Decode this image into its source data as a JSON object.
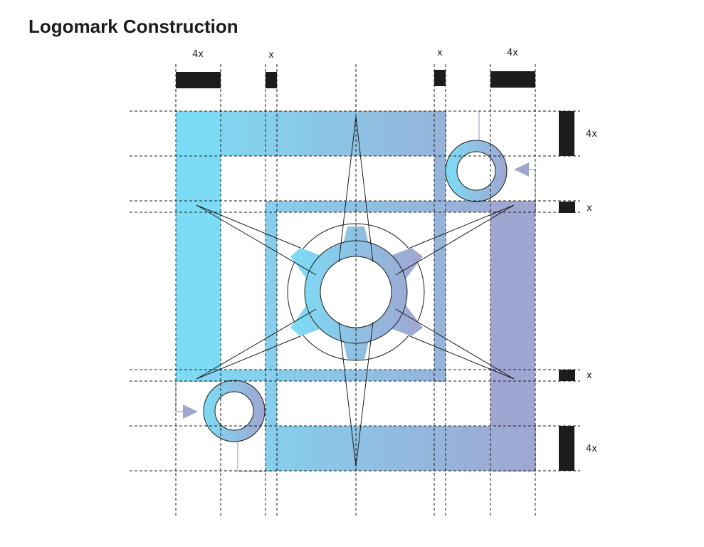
{
  "title": "Logomark Construction",
  "labels": {
    "top_4x_left": "4x",
    "top_x_left": "x",
    "top_x_right": "x",
    "top_4x_right": "4x",
    "right_4x_top": "4x",
    "right_x_upper": "x",
    "right_x_lower": "x",
    "right_4x_bottom": "4x"
  },
  "colors": {
    "gradient_start": "#7ddcf5",
    "gradient_end": "#9fa6d1",
    "ink": "#1c1c1c",
    "arrow": "#9fa6d1"
  }
}
